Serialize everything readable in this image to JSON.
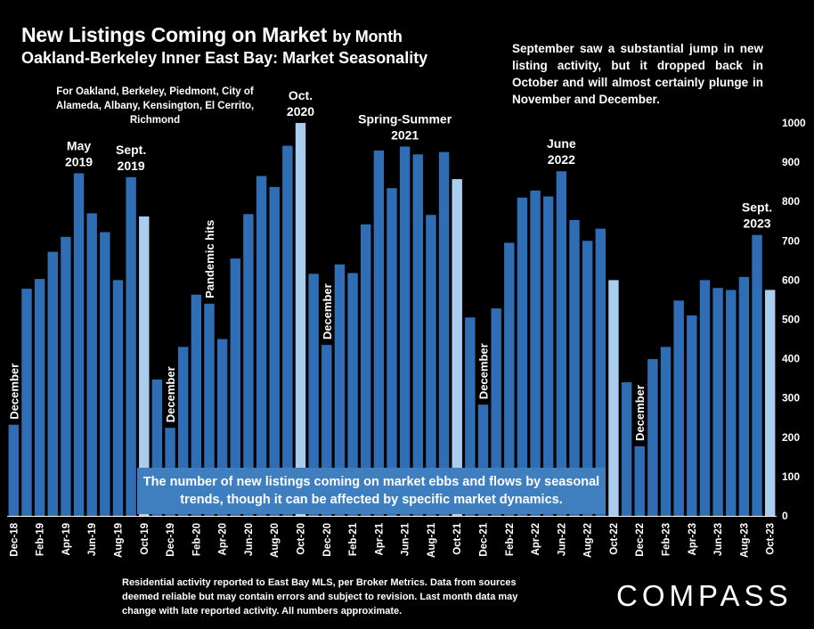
{
  "header": {
    "title": "New Listings Coming on Market",
    "title_suffix": "by Month",
    "subtitle": "Oakland-Berkeley Inner East Bay: Market Seasonality",
    "area_note": "For Oakland, Berkeley, Piedmont, City of Alameda, Albany, Kensington, El Cerrito, Richmond"
  },
  "annotation_top": "September saw a substantial jump in new listing activity, but it dropped back in October and will almost certainly plunge in November and December.",
  "callout": "The number of new listings coming on market ebbs and flows by seasonal trends, though it can be affected by specific market dynamics.",
  "footer": "Residential activity reported to East Bay MLS, per Broker Metrics. Data from sources deemed reliable but may contain errors and subject to revision. Last month data may change with late reported activity. All numbers approximate.",
  "logo": "COMPASS",
  "colors": {
    "bar": "#2f6db5",
    "highlight": "#a9cdee",
    "background": "#000000",
    "text": "#ffffff",
    "callout_bg": "#3f7fc0"
  },
  "chart_data": {
    "type": "bar",
    "ylim": [
      0,
      1000
    ],
    "yticks": [
      0,
      100,
      200,
      300,
      400,
      500,
      600,
      700,
      800,
      900,
      1000
    ],
    "grid": false,
    "categories": [
      "Dec-18",
      "Jan-19",
      "Feb-19",
      "Mar-19",
      "Apr-19",
      "May-19",
      "Jun-19",
      "Jul-19",
      "Aug-19",
      "Sep-19",
      "Oct-19",
      "Nov-19",
      "Dec-19",
      "Jan-20",
      "Feb-20",
      "Mar-20",
      "Apr-20",
      "May-20",
      "Jun-20",
      "Jul-20",
      "Aug-20",
      "Sep-20",
      "Oct-20",
      "Nov-20",
      "Dec-20",
      "Jan-21",
      "Feb-21",
      "Mar-21",
      "Apr-21",
      "May-21",
      "Jun-21",
      "Jul-21",
      "Aug-21",
      "Sep-21",
      "Oct-21",
      "Nov-21",
      "Dec-21",
      "Jan-22",
      "Feb-22",
      "Mar-22",
      "Apr-22",
      "May-22",
      "Jun-22",
      "Jul-22",
      "Aug-22",
      "Sep-22",
      "Oct-22",
      "Nov-22",
      "Dec-22",
      "Jan-23",
      "Feb-23",
      "Mar-23",
      "Apr-23",
      "May-23",
      "Jun-23",
      "Jul-23",
      "Aug-23",
      "Sep-23",
      "Oct-23"
    ],
    "xtick_labels": [
      "Dec-18",
      "",
      "Feb-19",
      "",
      "Apr-19",
      "",
      "Jun-19",
      "",
      "Aug-19",
      "",
      "Oct-19",
      "",
      "Dec-19",
      "",
      "Feb-20",
      "",
      "Apr-20",
      "",
      "Jun-20",
      "",
      "Aug-20",
      "",
      "Oct-20",
      "",
      "Dec-20",
      "",
      "Feb-21",
      "",
      "Apr-21",
      "",
      "Jun-21",
      "",
      "Aug-21",
      "",
      "Oct-21",
      "",
      "Dec-21",
      "",
      "Feb-22",
      "",
      "Apr-22",
      "",
      "Jun-22",
      "",
      "Aug-22",
      "",
      "Oct-22",
      "",
      "Dec-22",
      "",
      "Feb-23",
      "",
      "Apr-23",
      "",
      "Jun-23",
      "",
      "Aug-23",
      "",
      "Oct-23"
    ],
    "values": [
      232,
      578,
      603,
      672,
      710,
      872,
      770,
      722,
      600,
      862,
      762,
      347,
      224,
      430,
      563,
      540,
      450,
      655,
      768,
      865,
      837,
      942,
      1000,
      616,
      435,
      640,
      618,
      742,
      930,
      834,
      940,
      920,
      766,
      926,
      857,
      505,
      283,
      528,
      695,
      810,
      828,
      813,
      877,
      753,
      700,
      731,
      600,
      340,
      177,
      399,
      430,
      548,
      510,
      600,
      580,
      575,
      608,
      715,
      575
    ],
    "highlight_indices": [
      10,
      22,
      34,
      46,
      58
    ],
    "annotations": [
      {
        "index": 0,
        "text": "December",
        "style": "vertical"
      },
      {
        "index": 12,
        "text": "December",
        "style": "vertical"
      },
      {
        "index": 15,
        "text": "Pandemic hits",
        "style": "vertical"
      },
      {
        "index": 24,
        "text": "December",
        "style": "vertical"
      },
      {
        "index": 36,
        "text": "December",
        "style": "vertical"
      },
      {
        "index": 48,
        "text": "December",
        "style": "vertical"
      },
      {
        "index": 5,
        "lines": [
          "May",
          "2019"
        ],
        "style": "above"
      },
      {
        "index": 9,
        "lines": [
          "Sept.",
          "2019"
        ],
        "style": "above"
      },
      {
        "index": 22,
        "lines": [
          "Oct.",
          "2020"
        ],
        "style": "above"
      },
      {
        "index": 30,
        "lines": [
          "Spring-Summer",
          "2021"
        ],
        "style": "above"
      },
      {
        "index": 42,
        "lines": [
          "June",
          "2022"
        ],
        "style": "above"
      },
      {
        "index": 57,
        "lines": [
          "Sept.",
          "2023"
        ],
        "style": "above"
      }
    ]
  }
}
